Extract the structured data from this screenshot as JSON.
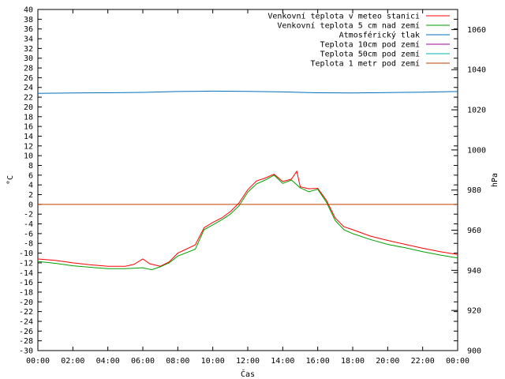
{
  "chart_data": {
    "type": "line",
    "xlabel": "Čas",
    "ylabel": "°C",
    "y2label": "hPa",
    "x_ticks": [
      "00:00",
      "02:00",
      "04:00",
      "06:00",
      "08:00",
      "10:00",
      "12:00",
      "14:00",
      "16:00",
      "18:00",
      "20:00",
      "22:00",
      "00:00"
    ],
    "x_range_hours": [
      0,
      24
    ],
    "ylim": [
      -30,
      40
    ],
    "y_ticks": [
      40,
      38,
      36,
      34,
      32,
      30,
      28,
      26,
      24,
      22,
      20,
      18,
      16,
      14,
      12,
      10,
      8,
      6,
      4,
      2,
      0,
      -2,
      -4,
      -6,
      -8,
      -10,
      -12,
      -14,
      -16,
      -18,
      -20,
      -22,
      -24,
      -26,
      -28,
      -30
    ],
    "y2lim": [
      900,
      1070
    ],
    "y2_ticks": [
      1060,
      1040,
      1020,
      1000,
      980,
      960,
      940,
      920,
      900
    ],
    "legend_position": "top-right",
    "grid": false,
    "series": [
      {
        "name": "Venkovní teplota v meteo stanici",
        "color": "#ff0000",
        "axis": "left",
        "points": [
          [
            0,
            -11.2
          ],
          [
            1,
            -11.5
          ],
          [
            2,
            -12
          ],
          [
            3,
            -12.4
          ],
          [
            4,
            -12.7
          ],
          [
            5,
            -12.7
          ],
          [
            5.5,
            -12.3
          ],
          [
            6,
            -11.2
          ],
          [
            6.4,
            -12.2
          ],
          [
            7,
            -12.7
          ],
          [
            7.5,
            -11.8
          ],
          [
            8,
            -10
          ],
          [
            9,
            -8.3
          ],
          [
            9.5,
            -4.8
          ],
          [
            10,
            -3.7
          ],
          [
            10.5,
            -2.8
          ],
          [
            11,
            -1.5
          ],
          [
            11.5,
            0.3
          ],
          [
            12,
            3
          ],
          [
            12.5,
            4.8
          ],
          [
            13,
            5.4
          ],
          [
            13.5,
            6.2
          ],
          [
            14,
            4.7
          ],
          [
            14.5,
            5.2
          ],
          [
            14.8,
            6.8
          ],
          [
            15,
            3.6
          ],
          [
            15.5,
            3.2
          ],
          [
            16,
            3.3
          ],
          [
            16.5,
            0.8
          ],
          [
            17,
            -2.8
          ],
          [
            17.5,
            -4.6
          ],
          [
            18,
            -5.2
          ],
          [
            19,
            -6.5
          ],
          [
            20,
            -7.4
          ],
          [
            21,
            -8.2
          ],
          [
            22,
            -9
          ],
          [
            23,
            -9.7
          ],
          [
            24,
            -10.3
          ]
        ]
      },
      {
        "name": "Venkovní teplota 5 cm nad zemí",
        "color": "#00a000",
        "axis": "left",
        "points": [
          [
            0,
            -11.7
          ],
          [
            1,
            -12.1
          ],
          [
            2,
            -12.6
          ],
          [
            3,
            -12.9
          ],
          [
            4,
            -13.2
          ],
          [
            5,
            -13.2
          ],
          [
            6,
            -13
          ],
          [
            6.5,
            -13.4
          ],
          [
            7,
            -12.8
          ],
          [
            7.5,
            -12
          ],
          [
            8,
            -10.6
          ],
          [
            9,
            -9.2
          ],
          [
            9.5,
            -5.2
          ],
          [
            10,
            -4.2
          ],
          [
            10.5,
            -3.2
          ],
          [
            11,
            -2
          ],
          [
            11.5,
            -0.3
          ],
          [
            12,
            2.5
          ],
          [
            12.5,
            4.2
          ],
          [
            13,
            5
          ],
          [
            13.5,
            6
          ],
          [
            14,
            4.3
          ],
          [
            14.5,
            5
          ],
          [
            15,
            3.4
          ],
          [
            15.5,
            2.6
          ],
          [
            16,
            3.1
          ],
          [
            16.5,
            0.4
          ],
          [
            17,
            -3.3
          ],
          [
            17.5,
            -5.2
          ],
          [
            18,
            -6
          ],
          [
            19,
            -7.2
          ],
          [
            20,
            -8.2
          ],
          [
            21,
            -8.9
          ],
          [
            22,
            -9.7
          ],
          [
            23,
            -10.4
          ],
          [
            24,
            -11
          ]
        ]
      },
      {
        "name": "Atmosférický tlak",
        "color": "#0070c0",
        "axis": "right",
        "points": [
          [
            0,
            1028.2
          ],
          [
            2,
            1028.4
          ],
          [
            4,
            1028.5
          ],
          [
            6,
            1028.7
          ],
          [
            8,
            1029.1
          ],
          [
            10,
            1029.3
          ],
          [
            12,
            1029.2
          ],
          [
            14,
            1028.9
          ],
          [
            16,
            1028.5
          ],
          [
            18,
            1028.4
          ],
          [
            20,
            1028.6
          ],
          [
            22,
            1028.8
          ],
          [
            24,
            1029.1
          ]
        ]
      },
      {
        "name": "Teplota 10cm pod zemí",
        "color": "#a000a0",
        "axis": "left",
        "points": []
      },
      {
        "name": "Teplota 50cm pod zemí",
        "color": "#00b0b0",
        "axis": "left",
        "points": []
      },
      {
        "name": "Teplota 1 metr pod zemí",
        "color": "#c04000",
        "axis": "left",
        "points": [
          [
            0,
            0
          ],
          [
            24,
            0
          ]
        ]
      }
    ]
  }
}
